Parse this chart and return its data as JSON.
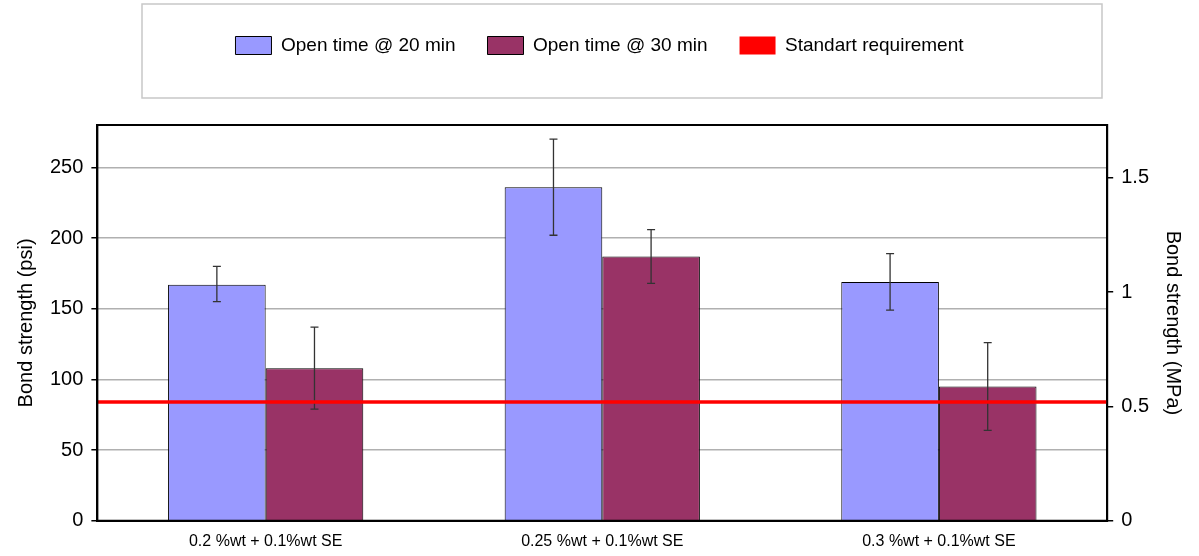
{
  "chart_data": {
    "type": "bar",
    "ylabel": "Bond strength (psi)",
    "y2label": "Bond strength (MPa)",
    "categories": [
      "0.2 %wt + 0.1%wt SE",
      "0.25 %wt + 0.1%wt SE",
      "0.3 %wt + 0.1%wt SE"
    ],
    "series": [
      {
        "name": "Open time @ 20 min",
        "color": "#9999ff",
        "values": [
          167,
          236,
          169
        ],
        "errors": [
          [
            155,
            180
          ],
          [
            202,
            270
          ],
          [
            149,
            189
          ]
        ]
      },
      {
        "name": "Open time @ 30 min",
        "color": "#993366",
        "values": [
          108,
          187,
          95
        ],
        "errors": [
          [
            79,
            137
          ],
          [
            168,
            206
          ],
          [
            64,
            126
          ]
        ]
      }
    ],
    "ylim": [
      0,
      280
    ],
    "yticks": [
      0,
      50,
      100,
      150,
      200,
      250
    ],
    "y2lim": [
      0,
      1.73
    ],
    "y2ticks": [
      0,
      0.5,
      1,
      1.5
    ],
    "ref_lines": [
      {
        "axis": "y",
        "value": 84,
        "label": "Standart requirement",
        "color": "#ff0000"
      }
    ],
    "grid": "y",
    "legend": "top"
  }
}
